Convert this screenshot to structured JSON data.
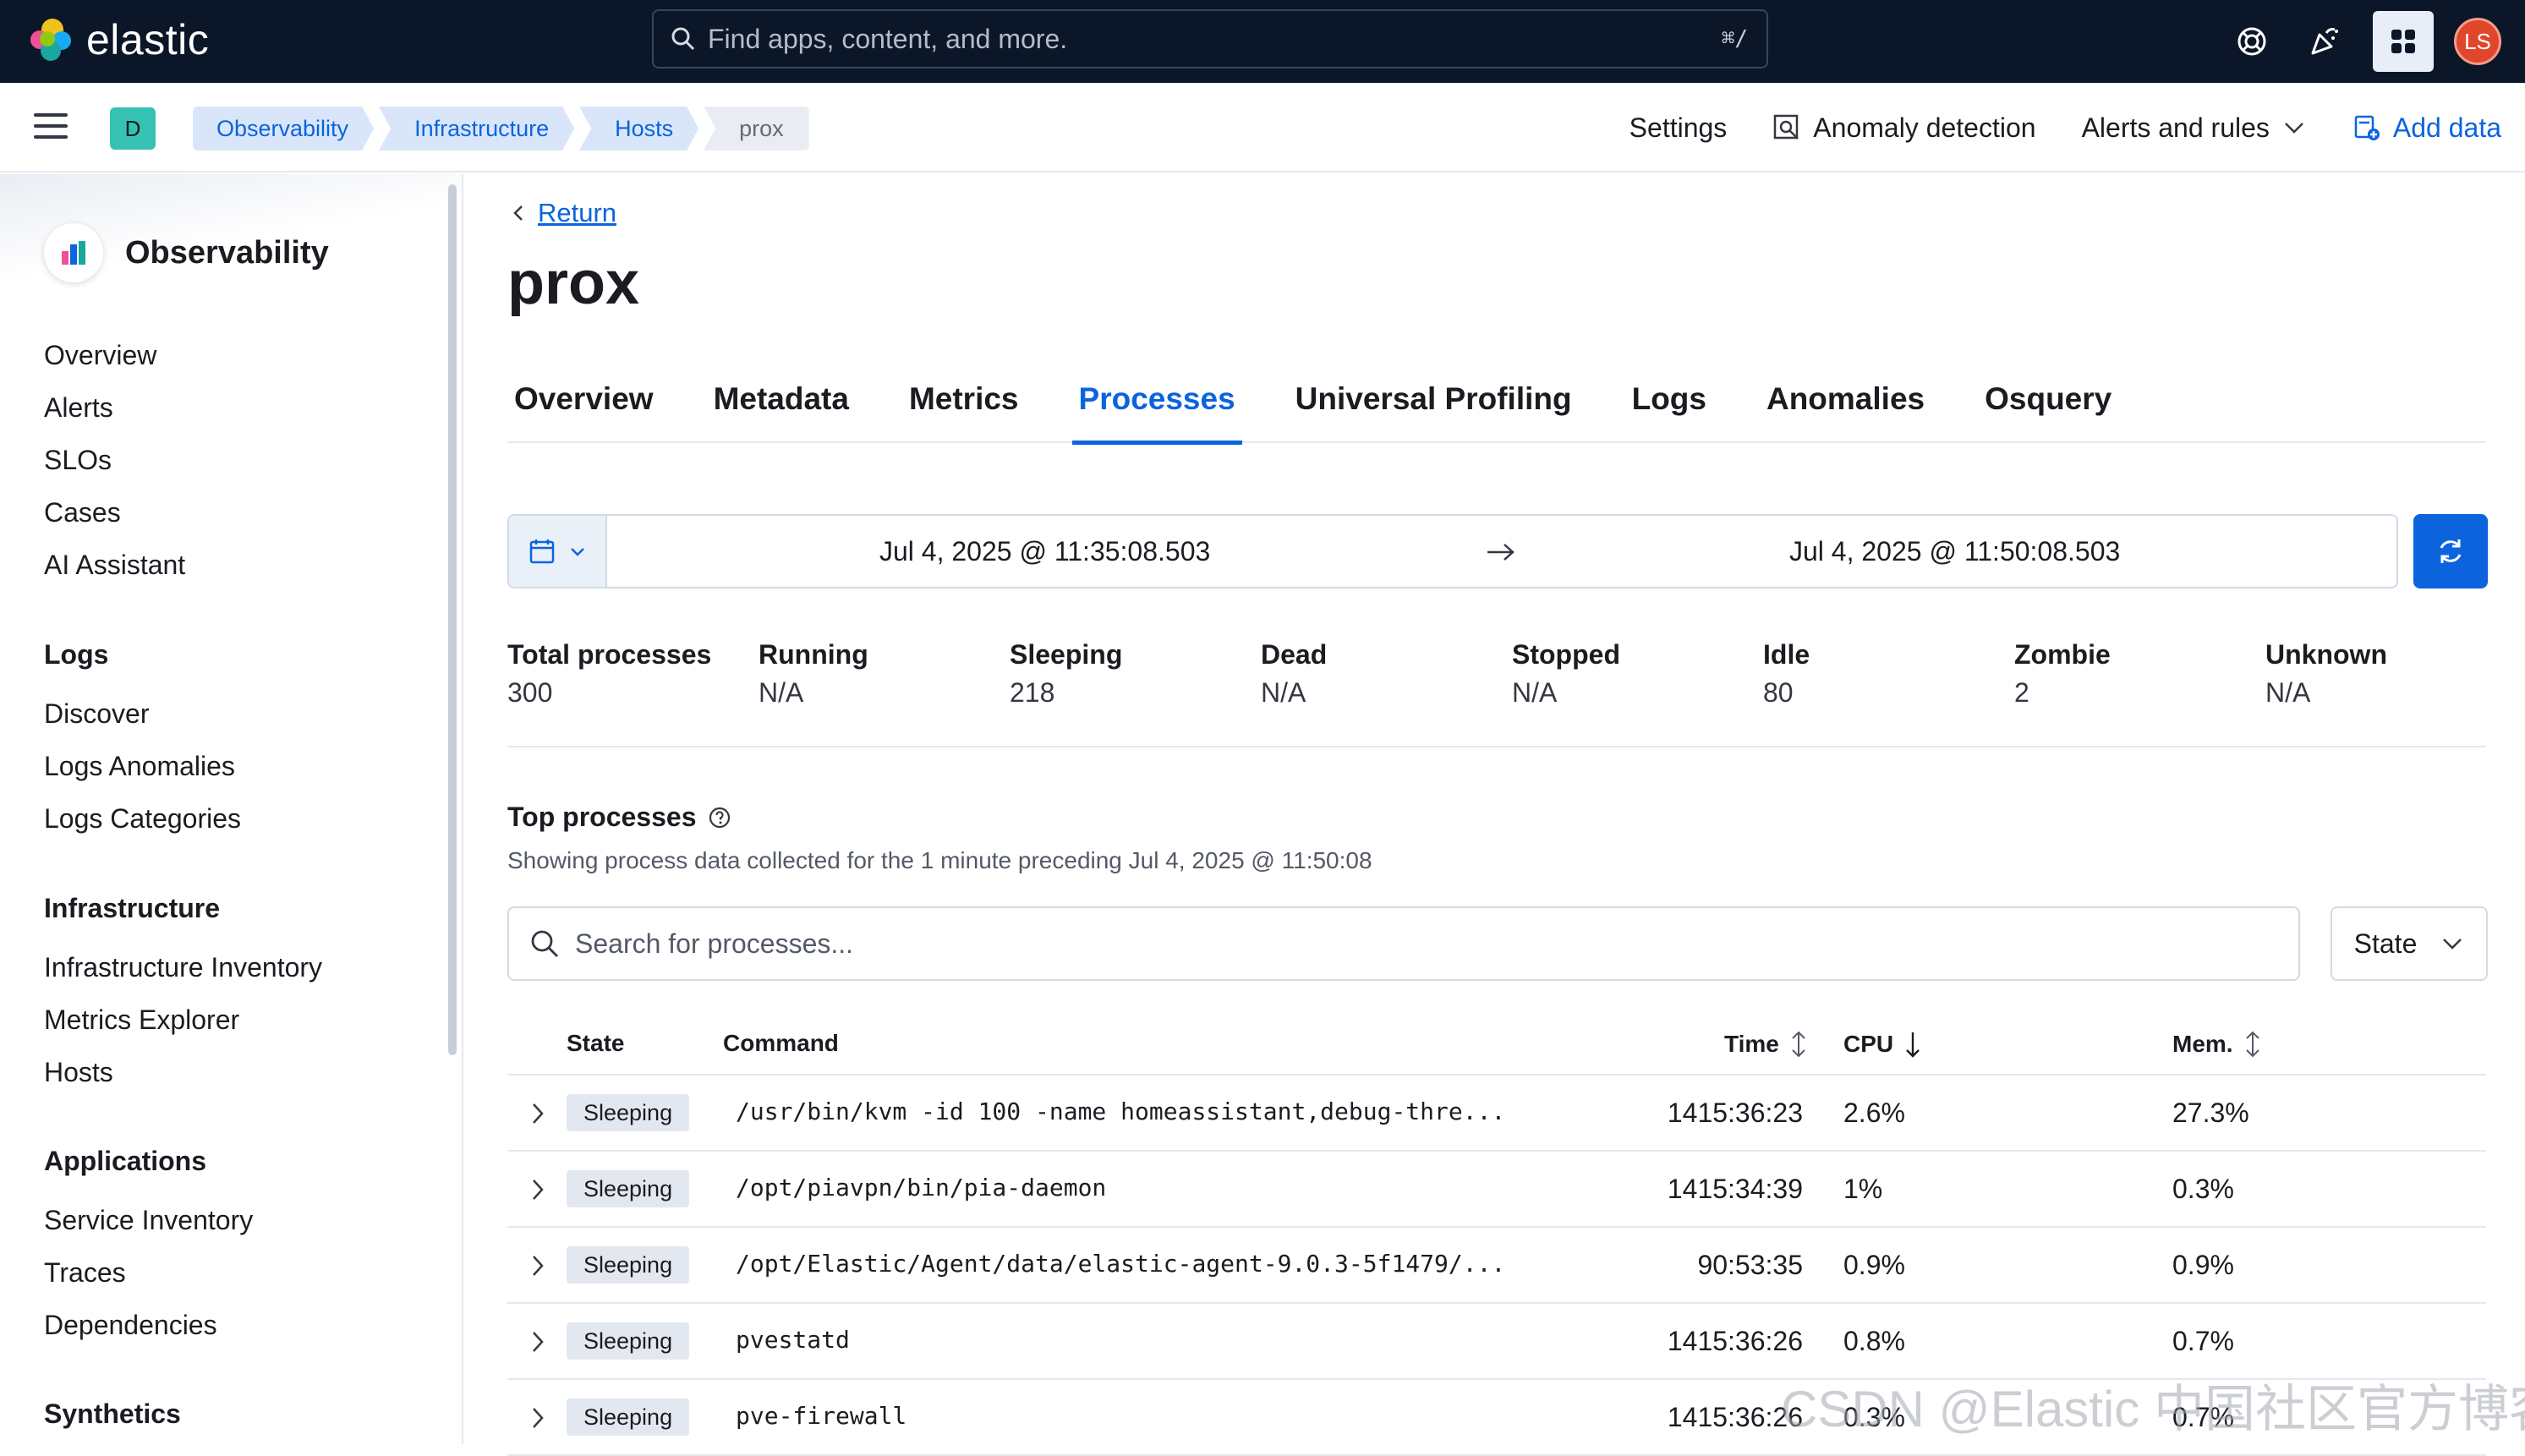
{
  "app": {
    "name": "elastic"
  },
  "search": {
    "placeholder": "Find apps, content, and more.",
    "shortcut": "⌘/"
  },
  "user": {
    "initials": "LS"
  },
  "space": {
    "letter": "D"
  },
  "breadcrumbs": [
    "Observability",
    "Infrastructure",
    "Hosts",
    "prox"
  ],
  "header_nav": {
    "settings": "Settings",
    "anomaly": "Anomaly detection",
    "alerts": "Alerts and rules",
    "add_data": "Add data"
  },
  "sidebar": {
    "title": "Observability",
    "top_items": [
      "Overview",
      "Alerts",
      "SLOs",
      "Cases",
      "AI Assistant"
    ],
    "sections": [
      {
        "heading": "Logs",
        "items": [
          "Discover",
          "Logs Anomalies",
          "Logs Categories"
        ]
      },
      {
        "heading": "Infrastructure",
        "items": [
          "Infrastructure Inventory",
          "Metrics Explorer",
          "Hosts"
        ]
      },
      {
        "heading": "Applications",
        "items": [
          "Service Inventory",
          "Traces",
          "Dependencies"
        ]
      },
      {
        "heading": "Synthetics",
        "items": []
      }
    ]
  },
  "page": {
    "return_label": "Return",
    "title": "prox",
    "tabs": [
      "Overview",
      "Metadata",
      "Metrics",
      "Processes",
      "Universal Profiling",
      "Logs",
      "Anomalies",
      "Osquery"
    ],
    "active_tab": "Processes"
  },
  "date_range": {
    "start": "Jul 4, 2025 @ 11:35:08.503",
    "end": "Jul 4, 2025 @ 11:50:08.503"
  },
  "summary": [
    {
      "label": "Total processes",
      "value": "300"
    },
    {
      "label": "Running",
      "value": "N/A"
    },
    {
      "label": "Sleeping",
      "value": "218"
    },
    {
      "label": "Dead",
      "value": "N/A"
    },
    {
      "label": "Stopped",
      "value": "N/A"
    },
    {
      "label": "Idle",
      "value": "80"
    },
    {
      "label": "Zombie",
      "value": "2"
    },
    {
      "label": "Unknown",
      "value": "N/A"
    }
  ],
  "top_processes": {
    "title": "Top processes",
    "subtitle": "Showing process data collected for the 1 minute preceding Jul 4, 2025 @ 11:50:08",
    "search_placeholder": "Search for processes...",
    "state_filter": "State",
    "columns": {
      "state": "State",
      "command": "Command",
      "time": "Time",
      "cpu": "CPU",
      "mem": "Mem."
    },
    "rows": [
      {
        "state": "Sleeping",
        "command": "/usr/bin/kvm -id 100 -name homeassistant,debug-thre...",
        "time": "1415:36:23",
        "cpu": "2.6%",
        "mem": "27.3%"
      },
      {
        "state": "Sleeping",
        "command": "/opt/piavpn/bin/pia-daemon",
        "time": "1415:34:39",
        "cpu": "1%",
        "mem": "0.3%"
      },
      {
        "state": "Sleeping",
        "command": "/opt/Elastic/Agent/data/elastic-agent-9.0.3-5f1479/...",
        "time": "90:53:35",
        "cpu": "0.9%",
        "mem": "0.9%"
      },
      {
        "state": "Sleeping",
        "command": "pvestatd",
        "time": "1415:36:26",
        "cpu": "0.8%",
        "mem": "0.7%"
      },
      {
        "state": "Sleeping",
        "command": "pve-firewall",
        "time": "1415:36:26",
        "cpu": "0.3%",
        "mem": "0.7%"
      }
    ]
  },
  "watermark": "CSDN @Elastic 中国社区官方博客"
}
